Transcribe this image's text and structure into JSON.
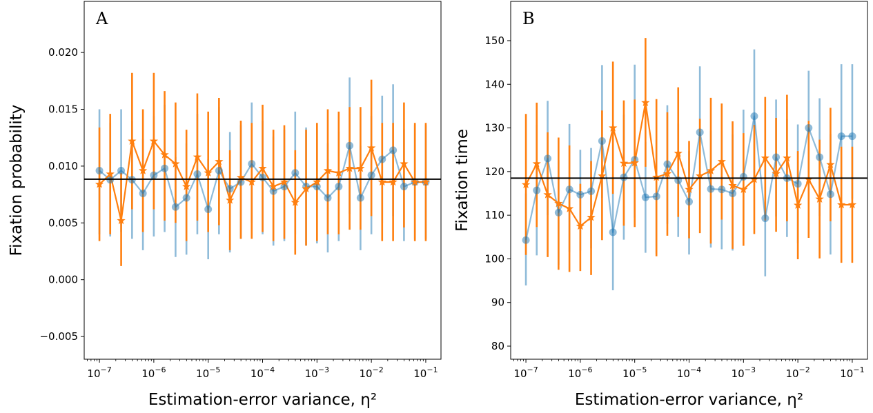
{
  "colors": {
    "series_a": "#1f77b4",
    "series_b": "#ff7f0e",
    "reference": "#000000"
  },
  "chart_data": [
    {
      "type": "line",
      "panel_label": "A",
      "xlabel": "Estimation-error variance, η²",
      "ylabel": "Fixation probability",
      "x_scale": "log",
      "x": [
        1e-07,
        1.58e-07,
        2.51e-07,
        3.98e-07,
        6.31e-07,
        1e-06,
        1.58e-06,
        2.51e-06,
        3.98e-06,
        6.31e-06,
        1e-05,
        1.58e-05,
        2.51e-05,
        3.98e-05,
        6.31e-05,
        0.0001,
        0.000158,
        0.000251,
        0.000398,
        0.000631,
        0.001,
        0.00158,
        0.00251,
        0.00398,
        0.00631,
        0.01,
        0.0158,
        0.0251,
        0.0398,
        0.0631,
        0.1
      ],
      "xticks": [
        {
          "base": "10",
          "exp": "−7",
          "value": 1e-07
        },
        {
          "base": "10",
          "exp": "−6",
          "value": 1e-06
        },
        {
          "base": "10",
          "exp": "−5",
          "value": 1e-05
        },
        {
          "base": "10",
          "exp": "−4",
          "value": 0.0001
        },
        {
          "base": "10",
          "exp": "−3",
          "value": 0.001
        },
        {
          "base": "10",
          "exp": "−2",
          "value": 0.01
        },
        {
          "base": "10",
          "exp": "−1",
          "value": 0.1
        }
      ],
      "ylim": [
        -0.007,
        0.0245
      ],
      "yticks": [
        {
          "label": "−0.005",
          "value": -0.005
        },
        {
          "label": "0.000",
          "value": 0.0
        },
        {
          "label": "0.005",
          "value": 0.005
        },
        {
          "label": "0.010",
          "value": 0.01
        },
        {
          "label": "0.015",
          "value": 0.015
        },
        {
          "label": "0.020",
          "value": 0.02
        }
      ],
      "reference_line": 0.00885,
      "series": [
        {
          "marker": "circle",
          "values": [
            0.0096,
            0.0088,
            0.0096,
            0.0088,
            0.0076,
            0.0092,
            0.0098,
            0.0064,
            0.0072,
            0.0093,
            0.0062,
            0.0096,
            0.008,
            0.0086,
            0.0102,
            0.009,
            0.0078,
            0.0082,
            0.0094,
            0.0082,
            0.0082,
            0.0072,
            0.0082,
            0.0118,
            0.0072,
            0.0092,
            0.0106,
            0.0114,
            0.0082,
            0.0086,
            0.0086
          ],
          "lower": [
            0.004,
            0.0038,
            0.0042,
            0.0036,
            0.0026,
            0.0038,
            0.0042,
            0.002,
            0.0022,
            0.004,
            0.0018,
            0.004,
            0.0024,
            0.0036,
            0.005,
            0.004,
            0.003,
            0.0034,
            0.004,
            0.003,
            0.0032,
            0.0024,
            0.0034,
            0.0058,
            0.0026,
            0.004,
            0.005,
            0.0056,
            0.0034,
            0.0036,
            0.0036
          ],
          "upper": [
            0.015,
            0.0138,
            0.015,
            0.014,
            0.0124,
            0.0144,
            0.0154,
            0.0108,
            0.012,
            0.0146,
            0.0106,
            0.0152,
            0.013,
            0.0136,
            0.0156,
            0.014,
            0.0126,
            0.0132,
            0.0148,
            0.0134,
            0.0132,
            0.012,
            0.013,
            0.0178,
            0.0118,
            0.0144,
            0.0162,
            0.0172,
            0.0132,
            0.0136,
            0.0136
          ]
        },
        {
          "marker": "star",
          "values": [
            0.0084,
            0.0093,
            0.0052,
            0.0122,
            0.0096,
            0.0122,
            0.011,
            0.0102,
            0.0082,
            0.0108,
            0.0094,
            0.0104,
            0.007,
            0.009,
            0.0086,
            0.0098,
            0.0082,
            0.0086,
            0.0068,
            0.008,
            0.0086,
            0.0096,
            0.0094,
            0.0098,
            0.0098,
            0.0116,
            0.0086,
            0.0086,
            0.0102,
            0.0086,
            0.0086
          ],
          "lower": [
            0.0034,
            0.004,
            0.0012,
            0.0062,
            0.0042,
            0.0062,
            0.0052,
            0.005,
            0.0034,
            0.0052,
            0.0042,
            0.0048,
            0.0026,
            0.0036,
            0.0036,
            0.0042,
            0.0034,
            0.0036,
            0.0022,
            0.003,
            0.0034,
            0.004,
            0.004,
            0.0044,
            0.0044,
            0.0056,
            0.0034,
            0.0034,
            0.0046,
            0.0034,
            0.0034
          ],
          "upper": [
            0.0134,
            0.0146,
            0.0094,
            0.0182,
            0.015,
            0.0182,
            0.0166,
            0.0156,
            0.0132,
            0.0164,
            0.0148,
            0.016,
            0.0114,
            0.014,
            0.0138,
            0.0154,
            0.0132,
            0.0136,
            0.0114,
            0.0132,
            0.0138,
            0.015,
            0.0148,
            0.0152,
            0.0152,
            0.0176,
            0.0138,
            0.0138,
            0.0156,
            0.0138,
            0.0138
          ]
        }
      ]
    },
    {
      "type": "line",
      "panel_label": "B",
      "xlabel": "Estimation-error variance, η²",
      "ylabel": "Fixation time",
      "x_scale": "log",
      "x": [
        1e-07,
        1.58e-07,
        2.51e-07,
        3.98e-07,
        6.31e-07,
        1e-06,
        1.58e-06,
        2.51e-06,
        3.98e-06,
        6.31e-06,
        1e-05,
        1.58e-05,
        2.51e-05,
        3.98e-05,
        6.31e-05,
        0.0001,
        0.000158,
        0.000251,
        0.000398,
        0.000631,
        0.001,
        0.00158,
        0.00251,
        0.00398,
        0.00631,
        0.01,
        0.0158,
        0.0251,
        0.0398,
        0.0631,
        0.1
      ],
      "xticks": [
        {
          "base": "10",
          "exp": "−7",
          "value": 1e-07
        },
        {
          "base": "10",
          "exp": "−6",
          "value": 1e-06
        },
        {
          "base": "10",
          "exp": "−5",
          "value": 1e-05
        },
        {
          "base": "10",
          "exp": "−4",
          "value": 0.0001
        },
        {
          "base": "10",
          "exp": "−3",
          "value": 0.001
        },
        {
          "base": "10",
          "exp": "−2",
          "value": 0.01
        },
        {
          "base": "10",
          "exp": "−1",
          "value": 0.1
        }
      ],
      "ylim": [
        77,
        159
      ],
      "yticks": [
        {
          "label": "80",
          "value": 80
        },
        {
          "label": "90",
          "value": 90
        },
        {
          "label": "100",
          "value": 100
        },
        {
          "label": "110",
          "value": 110
        },
        {
          "label": "120",
          "value": 120
        },
        {
          "label": "130",
          "value": 130
        },
        {
          "label": "140",
          "value": 140
        },
        {
          "label": "150",
          "value": 150
        }
      ],
      "reference_line": 118.5,
      "series": [
        {
          "marker": "circle",
          "values": [
            104.3,
            115.7,
            123.0,
            110.6,
            115.9,
            114.7,
            115.5,
            127.0,
            106.1,
            118.7,
            122.7,
            114.1,
            114.3,
            121.7,
            118.0,
            113.1,
            129.0,
            116.0,
            115.9,
            115.0,
            118.8,
            132.7,
            109.3,
            123.3,
            118.5,
            117.2,
            130.0,
            123.3,
            114.8,
            128.1,
            128.1
          ],
          "lower": [
            93.9,
            100.8,
            110.0,
            98.6,
            101.6,
            101.9,
            102.4,
            114.0,
            92.8,
            104.4,
            109.4,
            101.4,
            101.2,
            108.0,
            105.0,
            101.0,
            115.8,
            102.6,
            102.2,
            101.9,
            104.6,
            118.0,
            96.0,
            109.7,
            105.0,
            103.6,
            116.8,
            109.8,
            101.0,
            113.8,
            113.8
          ],
          "upper": [
            115.0,
            130.7,
            136.2,
            122.6,
            130.9,
            125.0,
            125.4,
            144.4,
            119.4,
            133.0,
            144.5,
            126.8,
            127.3,
            135.2,
            131.0,
            124.7,
            144.1,
            129.4,
            129.4,
            128.5,
            134.2,
            148.0,
            122.7,
            136.5,
            132.0,
            130.8,
            143.1,
            136.8,
            128.6,
            144.6,
            144.6
          ]
        },
        {
          "marker": "star",
          "values": [
            117.0,
            121.8,
            114.7,
            112.7,
            111.5,
            107.5,
            109.5,
            119.0,
            130.0,
            121.9,
            122.0,
            135.8,
            118.7,
            119.5,
            124.2,
            115.9,
            119.0,
            120.2,
            122.3,
            116.8,
            115.9,
            118.2,
            123.1,
            119.5,
            123.1,
            112.3,
            118.2,
            113.7,
            121.6,
            112.4,
            112.4
          ],
          "lower": [
            100.9,
            107.3,
            100.4,
            97.5,
            97.0,
            97.2,
            96.3,
            104.3,
            114.9,
            107.6,
            107.3,
            121.1,
            100.6,
            105.3,
            109.6,
            104.7,
            105.9,
            103.5,
            109.0,
            102.3,
            103.0,
            105.7,
            108.8,
            106.2,
            108.6,
            99.9,
            104.8,
            100.1,
            108.6,
            99.1,
            99.1
          ],
          "upper": [
            133.2,
            135.8,
            129.0,
            127.8,
            126.0,
            117.2,
            122.4,
            134.0,
            145.2,
            136.3,
            136.5,
            150.6,
            136.6,
            133.6,
            139.3,
            127.0,
            132.1,
            136.9,
            135.6,
            131.5,
            128.8,
            130.7,
            137.1,
            132.3,
            137.6,
            124.7,
            131.6,
            127.3,
            134.6,
            125.7,
            125.7
          ]
        }
      ]
    }
  ]
}
